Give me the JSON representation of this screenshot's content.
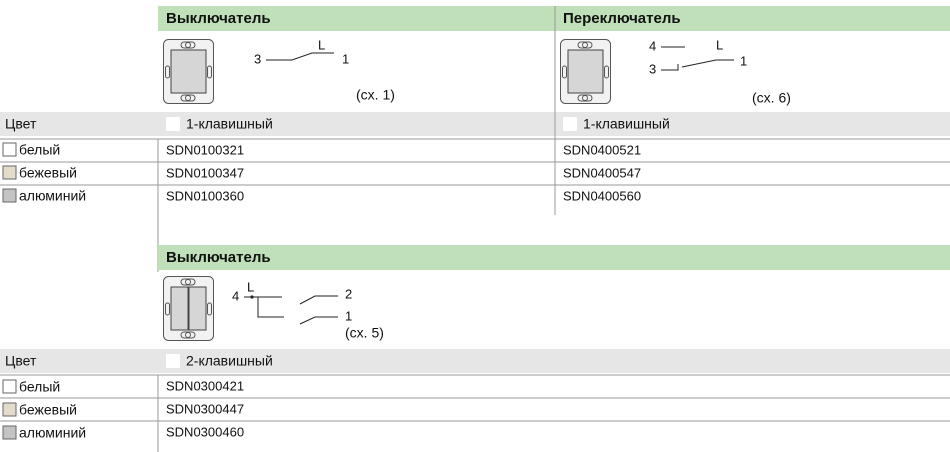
{
  "sections": [
    {
      "color_header": "Цвет",
      "colors": [
        "белый",
        "бежевый",
        "алюминий"
      ],
      "products": [
        {
          "title": "Выключатель",
          "variant": "1-клавишный",
          "scheme": {
            "labels": [
              "3",
              "L",
              "1"
            ],
            "ref": "(сх. 1)"
          },
          "codes": [
            "SDN0100321",
            "SDN0100347",
            "SDN0100360"
          ]
        },
        {
          "title": "Переключатель",
          "variant": "1-клавишный",
          "scheme": {
            "labels": [
              "4",
              "L",
              "3",
              "1"
            ],
            "ref": "(сх. 6)"
          },
          "codes": [
            "SDN0400521",
            "SDN0400547",
            "SDN0400560"
          ]
        }
      ]
    },
    {
      "color_header": "Цвет",
      "colors": [
        "белый",
        "бежевый",
        "алюминий"
      ],
      "products": [
        {
          "title": "Выключатель",
          "variant": "2-клавишный",
          "scheme": {
            "labels": [
              "4",
              "L",
              "2",
              "1"
            ],
            "ref": "(сх. 5)"
          },
          "codes": [
            "SDN0300421",
            "SDN0300447",
            "SDN0300460"
          ]
        }
      ]
    }
  ]
}
